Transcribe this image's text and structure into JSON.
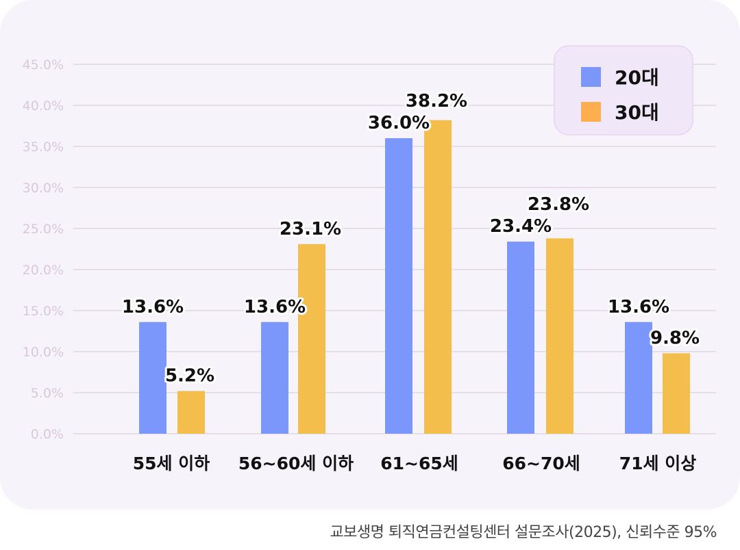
{
  "chart_data": {
    "type": "bar",
    "categories": [
      "55세 이하",
      "56~60세 이하",
      "61~65세",
      "66~70세",
      "71세 이상"
    ],
    "series": [
      {
        "name": "20대",
        "color": "#7b97fb",
        "values": [
          13.6,
          13.6,
          36.0,
          23.4,
          13.6
        ],
        "labels": [
          "13.6%",
          "13.6%",
          "36.0%",
          "23.4%",
          "13.6%"
        ]
      },
      {
        "name": "30대",
        "color": "#f4be4c",
        "values": [
          5.2,
          23.1,
          38.2,
          23.8,
          9.8
        ],
        "labels": [
          "5.2%",
          "23.1%",
          "38.2%",
          "23.8%",
          "9.8%"
        ]
      }
    ],
    "legend_colors": [
      "#7b97fb",
      "#fdae4e"
    ],
    "yticks": [
      "0.0%",
      "5.0%",
      "10.0%",
      "15.0%",
      "20.0%",
      "25.0%",
      "30.0%",
      "35.0%",
      "40.0%",
      "45.0%"
    ],
    "ylim": [
      0,
      45
    ],
    "grid": true,
    "legend_position": "top-right",
    "source": "교보생명 퇴직연금컨설팅센터 설문조사(2025), 신뢰수준 95%"
  }
}
